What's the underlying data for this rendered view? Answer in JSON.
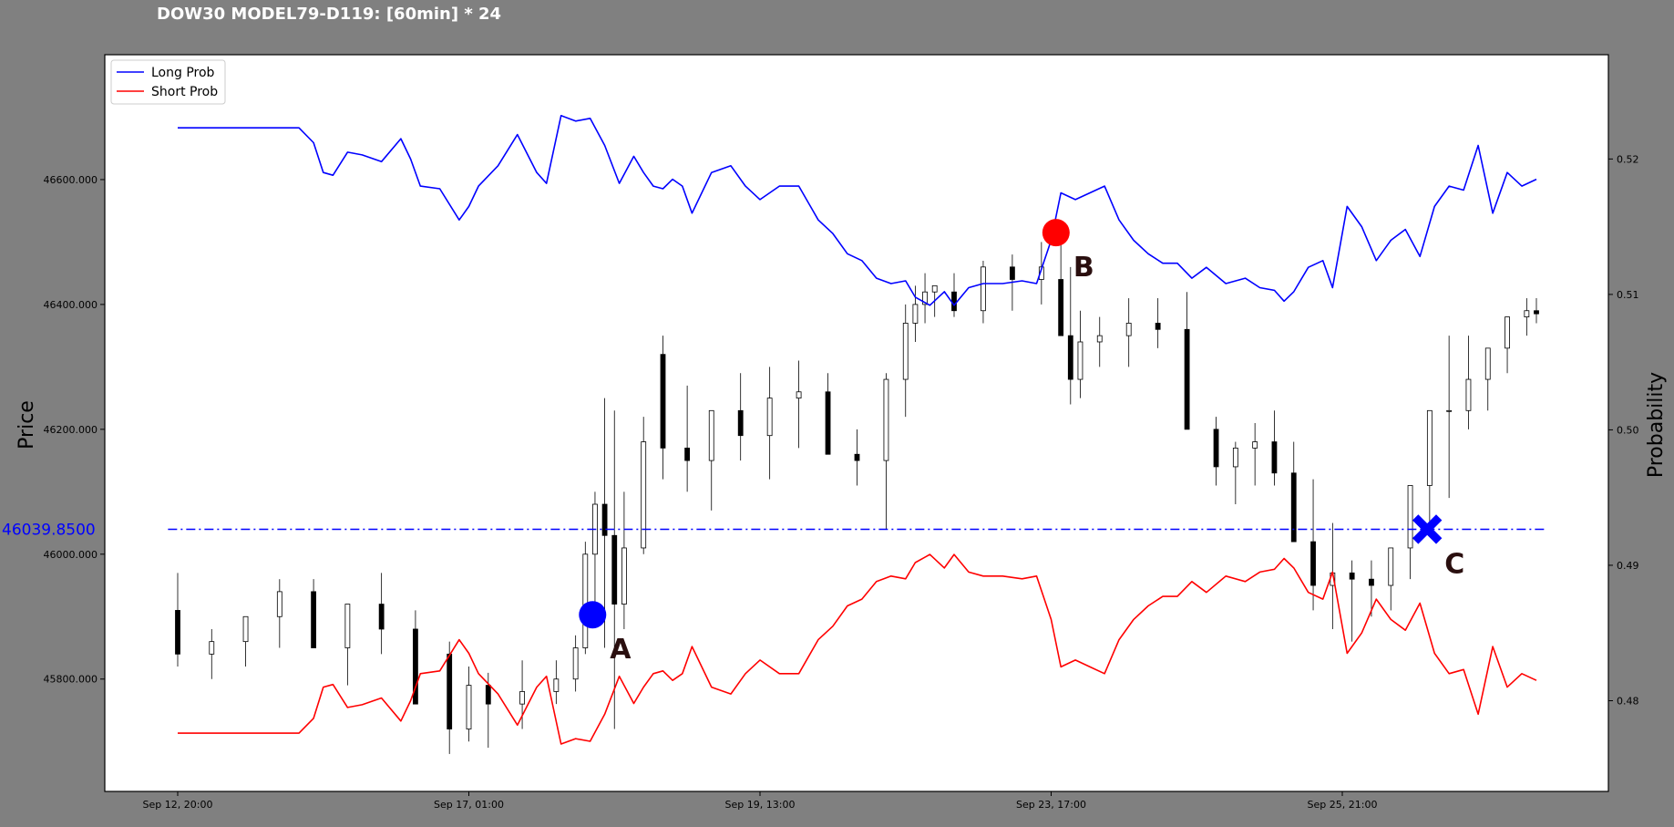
{
  "chart_data": {
    "type": "line",
    "title": "DOW30 MODEL79-D119: [60min] * 24",
    "left_axis": {
      "label": "Price",
      "range": [
        45620,
        46800
      ],
      "ticks": [
        45800,
        46000,
        46200,
        46400,
        46600
      ],
      "tick_labels": [
        "45800.000",
        "46000.000",
        "46200.000",
        "46400.000",
        "46600.000"
      ]
    },
    "right_axis": {
      "label": "Probability",
      "range": [
        0.4733,
        0.5277
      ],
      "ticks": [
        0.48,
        0.49,
        0.5,
        0.51,
        0.52
      ],
      "tick_labels": [
        "0.48",
        "0.49",
        "0.50",
        "0.51",
        "0.52"
      ]
    },
    "x_axis": {
      "range": [
        0,
        280
      ],
      "tick_positions": [
        0,
        60,
        120,
        180,
        240
      ],
      "tick_labels": [
        "Sep 12, 20:00",
        "Sep 17, 01:00",
        "Sep 19, 13:00",
        "Sep 23, 17:00",
        "Sep 25, 21:00"
      ]
    },
    "reference_line": {
      "value": 46039.85,
      "label": "46039.8500",
      "color": "#0000ff"
    },
    "legend": {
      "position": "top-left",
      "entries": [
        "Long Prob",
        "Short Prob"
      ]
    },
    "series": [
      {
        "name": "Long Prob",
        "color": "#0000ff",
        "axis": "right",
        "x": [
          0,
          5,
          10,
          15,
          20,
          25,
          28,
          30,
          32,
          35,
          38,
          42,
          46,
          48,
          50,
          54,
          58,
          60,
          62,
          66,
          70,
          74,
          76,
          79,
          82,
          85,
          88,
          91,
          94,
          96,
          98,
          100,
          102,
          104,
          106,
          110,
          114,
          117,
          120,
          124,
          128,
          132,
          135,
          138,
          141,
          144,
          147,
          150,
          152,
          155,
          158,
          160,
          163,
          166,
          170,
          174,
          177,
          180,
          182,
          185,
          188,
          191,
          194,
          197,
          200,
          203,
          206,
          209,
          212,
          216,
          220,
          223,
          226,
          228,
          230,
          233,
          236,
          238,
          241,
          244,
          247,
          250,
          253,
          256,
          259,
          262,
          265,
          268,
          271,
          274,
          277,
          280
        ],
        "y": [
          0.5223,
          0.5223,
          0.5223,
          0.5223,
          0.5223,
          0.5223,
          0.5212,
          0.519,
          0.5188,
          0.5205,
          0.5203,
          0.5198,
          0.5215,
          0.52,
          0.518,
          0.5178,
          0.5155,
          0.5165,
          0.518,
          0.5195,
          0.5218,
          0.519,
          0.5182,
          0.5232,
          0.5228,
          0.523,
          0.521,
          0.5182,
          0.5202,
          0.519,
          0.518,
          0.5178,
          0.5185,
          0.518,
          0.516,
          0.519,
          0.5195,
          0.518,
          0.517,
          0.518,
          0.518,
          0.5155,
          0.5145,
          0.513,
          0.5125,
          0.5112,
          0.5108,
          0.511,
          0.5098,
          0.5092,
          0.5102,
          0.5092,
          0.5105,
          0.5108,
          0.5108,
          0.511,
          0.5108,
          0.514,
          0.5175,
          0.517,
          0.5175,
          0.518,
          0.5155,
          0.514,
          0.513,
          0.5123,
          0.5123,
          0.5112,
          0.512,
          0.5108,
          0.5112,
          0.5105,
          0.5103,
          0.5095,
          0.5102,
          0.512,
          0.5125,
          0.5105,
          0.5165,
          0.515,
          0.5125,
          0.514,
          0.5148,
          0.5128,
          0.5165,
          0.518,
          0.5177,
          0.521,
          0.516,
          0.519,
          0.518,
          0.5185
        ]
      },
      {
        "name": "Short Prob",
        "color": "#ff0000",
        "axis": "right",
        "x": [
          0,
          5,
          10,
          15,
          20,
          25,
          28,
          30,
          32,
          35,
          38,
          42,
          46,
          48,
          50,
          54,
          58,
          60,
          62,
          66,
          70,
          74,
          76,
          79,
          82,
          85,
          88,
          91,
          94,
          96,
          98,
          100,
          102,
          104,
          106,
          110,
          114,
          117,
          120,
          124,
          128,
          132,
          135,
          138,
          141,
          144,
          147,
          150,
          152,
          155,
          158,
          160,
          163,
          166,
          170,
          174,
          177,
          180,
          182,
          185,
          188,
          191,
          194,
          197,
          200,
          203,
          206,
          209,
          212,
          216,
          220,
          223,
          226,
          228,
          230,
          233,
          236,
          238,
          241,
          244,
          247,
          250,
          253,
          256,
          259,
          262,
          265,
          268,
          271,
          274,
          277,
          280
        ],
        "y": [
          0.4776,
          0.4776,
          0.4776,
          0.4776,
          0.4776,
          0.4776,
          0.4787,
          0.481,
          0.4812,
          0.4795,
          0.4797,
          0.4802,
          0.4785,
          0.48,
          0.482,
          0.4822,
          0.4845,
          0.4835,
          0.482,
          0.4805,
          0.4782,
          0.481,
          0.4818,
          0.4768,
          0.4772,
          0.477,
          0.479,
          0.4818,
          0.4798,
          0.481,
          0.482,
          0.4822,
          0.4815,
          0.482,
          0.484,
          0.481,
          0.4805,
          0.482,
          0.483,
          0.482,
          0.482,
          0.4845,
          0.4855,
          0.487,
          0.4875,
          0.4888,
          0.4892,
          0.489,
          0.4902,
          0.4908,
          0.4898,
          0.4908,
          0.4895,
          0.4892,
          0.4892,
          0.489,
          0.4892,
          0.486,
          0.4825,
          0.483,
          0.4825,
          0.482,
          0.4845,
          0.486,
          0.487,
          0.4877,
          0.4877,
          0.4888,
          0.488,
          0.4892,
          0.4888,
          0.4895,
          0.4897,
          0.4905,
          0.4898,
          0.488,
          0.4875,
          0.4895,
          0.4835,
          0.485,
          0.4875,
          0.486,
          0.4852,
          0.4872,
          0.4835,
          0.482,
          0.4823,
          0.479,
          0.484,
          0.481,
          0.482,
          0.4815
        ]
      }
    ],
    "candles": {
      "axis": "left",
      "x": [
        0,
        7,
        14,
        21,
        28,
        35,
        42,
        49,
        56,
        60,
        64,
        71,
        78,
        82,
        84,
        86,
        88,
        90,
        92,
        96,
        100,
        105,
        110,
        116,
        122,
        128,
        134,
        140,
        146,
        150,
        152,
        154,
        156,
        160,
        166,
        172,
        178,
        182,
        184,
        186,
        190,
        196,
        202,
        208,
        214,
        218,
        222,
        226,
        230,
        234,
        238,
        242,
        246,
        250,
        254,
        258,
        262,
        266,
        270,
        274,
        278,
        280
      ],
      "open": [
        45910,
        45840,
        45860,
        45900,
        45940,
        45850,
        45920,
        45880,
        45840,
        45720,
        45790,
        45760,
        45780,
        45800,
        45850,
        46000,
        46080,
        46030,
        45920,
        46010,
        46320,
        46170,
        46150,
        46230,
        46190,
        46250,
        46260,
        46160,
        46150,
        46280,
        46370,
        46400,
        46420,
        46420,
        46390,
        46460,
        46440,
        46440,
        46350,
        46280,
        46340,
        46350,
        46370,
        46360,
        46200,
        46140,
        46170,
        46180,
        46130,
        46020,
        45950,
        45970,
        45960,
        45950,
        46010,
        46110,
        46230,
        46230,
        46280,
        46330,
        46380,
        46390
      ],
      "high": [
        45970,
        45880,
        45900,
        45960,
        45960,
        45900,
        45970,
        45910,
        45860,
        45820,
        45810,
        45830,
        45830,
        45870,
        46020,
        46100,
        46250,
        46230,
        46100,
        46220,
        46350,
        46270,
        46230,
        46290,
        46300,
        46310,
        46290,
        46200,
        46290,
        46400,
        46430,
        46450,
        46430,
        46450,
        46470,
        46480,
        46500,
        46520,
        46460,
        46390,
        46380,
        46410,
        46410,
        46420,
        46220,
        46180,
        46210,
        46230,
        46180,
        46120,
        46050,
        45990,
        45990,
        45970,
        46060,
        46170,
        46350,
        46350,
        46330,
        46380,
        46410,
        46410
      ],
      "low": [
        45820,
        45800,
        45820,
        45850,
        45850,
        45790,
        45840,
        45760,
        45680,
        45700,
        45690,
        45720,
        45760,
        45780,
        45840,
        45920,
        45850,
        45720,
        45880,
        46000,
        46120,
        46100,
        46070,
        46150,
        46120,
        46170,
        46190,
        46110,
        46040,
        46220,
        46340,
        46370,
        46380,
        46380,
        46370,
        46390,
        46400,
        46380,
        46240,
        46250,
        46300,
        46300,
        46330,
        46300,
        46110,
        46080,
        46110,
        46110,
        46050,
        45910,
        45880,
        45860,
        45900,
        45910,
        45960,
        46040,
        46090,
        46200,
        46230,
        46290,
        46350,
        46370
      ],
      "close": [
        45840,
        45860,
        45900,
        45940,
        45850,
        45920,
        45880,
        45760,
        45720,
        45790,
        45760,
        45780,
        45800,
        45850,
        46000,
        46080,
        46030,
        45920,
        46010,
        46180,
        46170,
        46150,
        46230,
        46190,
        46250,
        46260,
        46160,
        46150,
        46280,
        46370,
        46400,
        46420,
        46430,
        46390,
        46460,
        46440,
        46460,
        46350,
        46280,
        46340,
        46350,
        46370,
        46360,
        46200,
        46140,
        46170,
        46180,
        46130,
        46020,
        45950,
        45970,
        45960,
        45950,
        46010,
        46110,
        46230,
        46230,
        46280,
        46330,
        46380,
        46390,
        46385
      ]
    },
    "markers": [
      {
        "label": "A",
        "shape": "circle",
        "color": "#0000ff",
        "x": 85.5,
        "price": 45903
      },
      {
        "label": "B",
        "shape": "circle",
        "color": "#ff0000",
        "x": 181,
        "price": 46515
      },
      {
        "label": "C",
        "shape": "x",
        "color": "#0000ff",
        "x": 257.5,
        "price": 46040
      }
    ]
  }
}
